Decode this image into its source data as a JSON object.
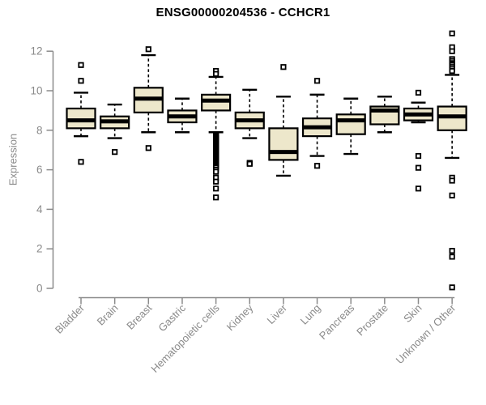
{
  "title": "ENSG00000204536 - CCHCR1",
  "y_axis": {
    "label": "Expression",
    "ticks": [
      0,
      2,
      4,
      6,
      8,
      10,
      12
    ],
    "range": [
      0,
      12
    ]
  },
  "colors": {
    "background": "#ffffff",
    "box_fill": "#EDE7CB",
    "box_stroke": "#000000",
    "median": "#000000",
    "whisker": "#000000",
    "outlier_stroke": "#000000",
    "outlier_fill": "#ffffff",
    "axis": "#8a8a8a",
    "title": "#000000"
  },
  "chart_data": {
    "type": "boxplot",
    "title": "ENSG00000204536 - CCHCR1",
    "xlabel": "",
    "ylabel": "Expression",
    "ylim": [
      0,
      12
    ],
    "yticks": [
      0,
      2,
      4,
      6,
      8,
      10,
      12
    ],
    "grid": false,
    "legend": "none",
    "categories": [
      "Bladder",
      "Brain",
      "Breast",
      "Gastric",
      "Hematopoietic cells",
      "Kidney",
      "Liver",
      "Lung",
      "Pancreas",
      "Prostate",
      "Skin",
      "Unknown / Other"
    ],
    "boxes": [
      {
        "category": "Bladder",
        "whisker_low": 7.7,
        "q1": 8.1,
        "median": 8.5,
        "q3": 9.1,
        "whisker_high": 9.9,
        "outliers": [
          11.3,
          10.5,
          6.4
        ]
      },
      {
        "category": "Brain",
        "whisker_low": 7.6,
        "q1": 8.1,
        "median": 8.45,
        "q3": 8.7,
        "whisker_high": 9.3,
        "outliers": [
          6.9
        ]
      },
      {
        "category": "Breast",
        "whisker_low": 7.9,
        "q1": 8.9,
        "median": 9.6,
        "q3": 10.15,
        "whisker_high": 11.8,
        "outliers": [
          12.1,
          7.1
        ]
      },
      {
        "category": "Gastric",
        "whisker_low": 7.9,
        "q1": 8.4,
        "median": 8.7,
        "q3": 9.0,
        "whisker_high": 9.6,
        "outliers": []
      },
      {
        "category": "Hematopoietic cells",
        "whisker_low": 7.9,
        "q1": 9.0,
        "median": 9.5,
        "q3": 9.8,
        "whisker_high": 10.7,
        "outliers": [
          11.0,
          10.85,
          7.8,
          7.75,
          7.7,
          7.65,
          7.6,
          7.55,
          7.5,
          7.45,
          7.4,
          7.35,
          7.3,
          7.25,
          7.2,
          7.15,
          7.1,
          7.05,
          7.0,
          6.95,
          6.9,
          6.85,
          6.8,
          6.75,
          6.7,
          6.65,
          6.6,
          6.55,
          6.5,
          6.45,
          6.4,
          6.35,
          6.3,
          6.25,
          6.2,
          6.15,
          6.1,
          6.0,
          5.9,
          5.6,
          5.4,
          5.05,
          4.6
        ]
      },
      {
        "category": "Kidney",
        "whisker_low": 7.6,
        "q1": 8.1,
        "median": 8.5,
        "q3": 8.9,
        "whisker_high": 10.05,
        "outliers": [
          6.35,
          6.3
        ]
      },
      {
        "category": "Liver",
        "whisker_low": 5.7,
        "q1": 6.5,
        "median": 6.9,
        "q3": 8.1,
        "whisker_high": 9.7,
        "outliers": [
          11.2
        ]
      },
      {
        "category": "Lung",
        "whisker_low": 6.7,
        "q1": 7.7,
        "median": 8.15,
        "q3": 8.6,
        "whisker_high": 9.8,
        "outliers": [
          10.5,
          6.2
        ]
      },
      {
        "category": "Pancreas",
        "whisker_low": 6.8,
        "q1": 7.8,
        "median": 8.5,
        "q3": 8.8,
        "whisker_high": 9.6,
        "outliers": []
      },
      {
        "category": "Prostate",
        "whisker_low": 7.9,
        "q1": 8.3,
        "median": 9.0,
        "q3": 9.2,
        "whisker_high": 9.7,
        "outliers": []
      },
      {
        "category": "Skin",
        "whisker_low": 8.4,
        "q1": 8.5,
        "median": 8.8,
        "q3": 9.1,
        "whisker_high": 9.4,
        "outliers": [
          9.9,
          6.7,
          6.1,
          5.05
        ]
      },
      {
        "category": "Unknown / Other",
        "whisker_low": 6.6,
        "q1": 8.0,
        "median": 8.7,
        "q3": 9.2,
        "whisker_high": 10.8,
        "outliers": [
          12.9,
          12.2,
          12.0,
          11.6,
          11.5,
          11.4,
          11.35,
          11.3,
          11.2,
          11.1,
          11.0,
          5.6,
          5.45,
          4.7,
          1.9,
          1.6,
          0.05
        ]
      }
    ]
  }
}
